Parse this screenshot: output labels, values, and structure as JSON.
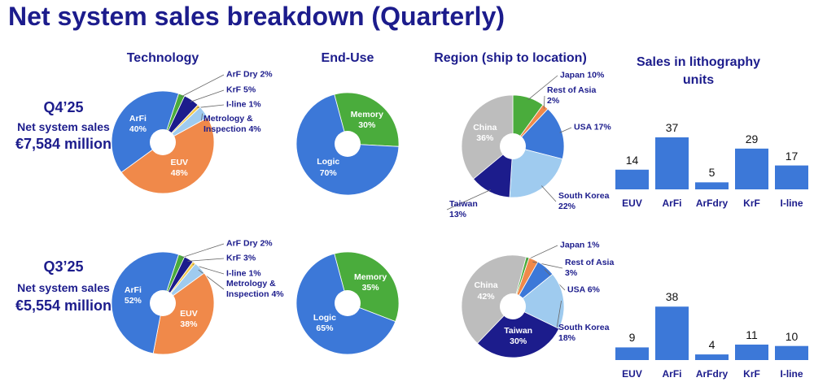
{
  "title": "Net system sales breakdown (Quarterly)",
  "columns": [
    "Technology",
    "End-Use",
    "Region (ship to location)",
    "Sales in lithography units"
  ],
  "rows": [
    {
      "quarter": "Q4’25",
      "label": "Net system sales",
      "amount": "€7,584 million"
    },
    {
      "quarter": "Q3’25",
      "label": "Net system sales",
      "amount": "€5,554 million"
    }
  ],
  "chart_data": [
    {
      "type": "pie",
      "categories": [
        "ArF Dry",
        "KrF",
        "I-line",
        "Metrology & Inspection",
        "EUV",
        "ArFi"
      ],
      "values": [
        2,
        5,
        1,
        4,
        48,
        40
      ],
      "value_labels": [
        "2%",
        "5%",
        "1%",
        "4%",
        "48%",
        "40%"
      ],
      "colors": [
        "#4aac3c",
        "#1c1c8c",
        "#f2c94c",
        "#9fcbef",
        "#f0894a",
        "#3c78d8"
      ]
    },
    {
      "type": "pie",
      "categories": [
        "Memory",
        "Logic"
      ],
      "values": [
        30,
        70
      ],
      "value_labels": [
        "30%",
        "70%"
      ],
      "colors": [
        "#4aac3c",
        "#3c78d8"
      ]
    },
    {
      "type": "pie",
      "categories": [
        "Japan",
        "Rest of Asia",
        "USA",
        "South Korea",
        "Taiwan",
        "China"
      ],
      "values": [
        10,
        2,
        17,
        22,
        13,
        36
      ],
      "value_labels": [
        "10%",
        "2%",
        "17%",
        "22%",
        "13%",
        "36%"
      ],
      "colors": [
        "#4aac3c",
        "#f0894a",
        "#3c78d8",
        "#9fcbef",
        "#1c1c8c",
        "#bdbdbd"
      ]
    },
    {
      "type": "bar",
      "categories": [
        "EUV",
        "ArFi",
        "ArFdry",
        "KrF",
        "I-line"
      ],
      "values": [
        14,
        37,
        5,
        29,
        17
      ],
      "color": "#3c78d8"
    },
    {
      "type": "pie",
      "categories": [
        "ArF Dry",
        "KrF",
        "I-line",
        "Metrology & Inspection",
        "EUV",
        "ArFi"
      ],
      "values": [
        2,
        3,
        1,
        4,
        38,
        52
      ],
      "value_labels": [
        "2%",
        "3%",
        "1%",
        "4%",
        "38%",
        "52%"
      ],
      "colors": [
        "#4aac3c",
        "#1c1c8c",
        "#f2c94c",
        "#9fcbef",
        "#f0894a",
        "#3c78d8"
      ]
    },
    {
      "type": "pie",
      "categories": [
        "Memory",
        "Logic"
      ],
      "values": [
        35,
        65
      ],
      "value_labels": [
        "35%",
        "65%"
      ],
      "colors": [
        "#4aac3c",
        "#3c78d8"
      ]
    },
    {
      "type": "pie",
      "categories": [
        "Japan",
        "Rest of Asia",
        "USA",
        "South Korea",
        "Taiwan",
        "China"
      ],
      "values": [
        1,
        3,
        6,
        18,
        30,
        42
      ],
      "value_labels": [
        "1%",
        "3%",
        "6%",
        "18%",
        "30%",
        "42%"
      ],
      "colors": [
        "#4aac3c",
        "#f0894a",
        "#3c78d8",
        "#9fcbef",
        "#1c1c8c",
        "#bdbdbd"
      ]
    },
    {
      "type": "bar",
      "categories": [
        "EUV",
        "ArFi",
        "ArFdry",
        "KrF",
        "I-line"
      ],
      "values": [
        9,
        38,
        4,
        11,
        10
      ],
      "color": "#3c78d8"
    }
  ]
}
